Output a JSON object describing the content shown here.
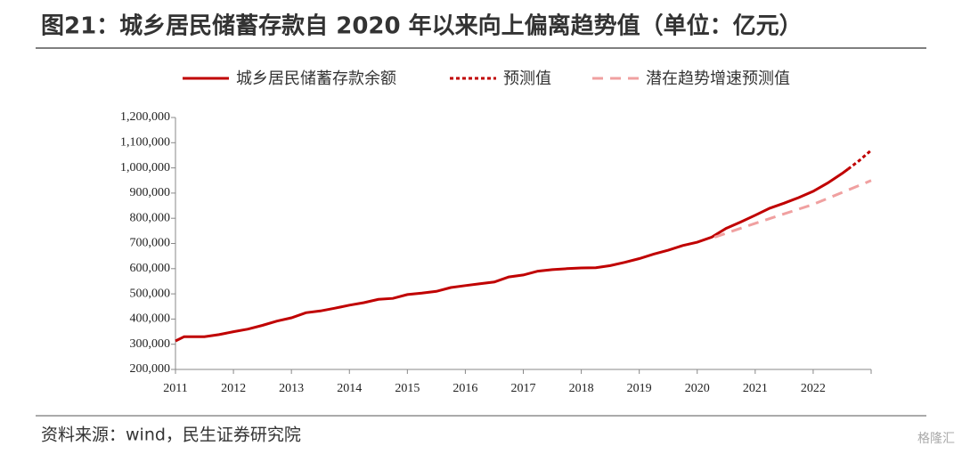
{
  "chart_data": {
    "type": "line",
    "title": "图21：城乡居民储蓄存款自 2020 年以来向上偏离趋势值（单位：亿元）",
    "source": "资料来源：wind，民生证券研究院",
    "watermark": "格隆汇",
    "xlim": [
      2011,
      2023
    ],
    "xticks": [
      2011,
      2012,
      2013,
      2014,
      2015,
      2016,
      2017,
      2018,
      2019,
      2020,
      2021,
      2022
    ],
    "ylim": [
      200000,
      1200000
    ],
    "yticks": [
      {
        "value": 200000,
        "label": "200,000"
      },
      {
        "value": 300000,
        "label": "300,000"
      },
      {
        "value": 400000,
        "label": "400,000"
      },
      {
        "value": 500000,
        "label": "500,000"
      },
      {
        "value": 600000,
        "label": "600,000"
      },
      {
        "value": 700000,
        "label": "700,000"
      },
      {
        "value": 800000,
        "label": "800,000"
      },
      {
        "value": 900000,
        "label": "900,000"
      },
      {
        "value": 1000000,
        "label": "1,000,000"
      },
      {
        "value": 1100000,
        "label": "1,100,000"
      },
      {
        "value": 1200000,
        "label": "1,200,000"
      }
    ],
    "grid": false,
    "legend": "top",
    "series": [
      {
        "name": "城乡居民储蓄存款余额",
        "color": "#c00000",
        "style": "solid",
        "x": [
          2011.0,
          2011.15,
          2011.5,
          2011.75,
          2012.0,
          2012.25,
          2012.5,
          2012.75,
          2013.0,
          2013.25,
          2013.5,
          2013.75,
          2014.0,
          2014.25,
          2014.5,
          2014.75,
          2015.0,
          2015.25,
          2015.5,
          2015.75,
          2016.0,
          2016.25,
          2016.5,
          2016.75,
          2017.0,
          2017.25,
          2017.5,
          2017.75,
          2018.0,
          2018.25,
          2018.5,
          2018.75,
          2019.0,
          2019.25,
          2019.5,
          2019.75,
          2020.0,
          2020.25,
          2020.5,
          2020.75,
          2021.0,
          2021.25,
          2021.5,
          2021.75,
          2022.0,
          2022.25,
          2022.5,
          2022.6
        ],
        "values": [
          313000,
          330000,
          330000,
          338000,
          350000,
          360000,
          375000,
          392000,
          405000,
          425000,
          432000,
          443000,
          455000,
          465000,
          478000,
          482000,
          497000,
          503000,
          510000,
          525000,
          533000,
          540000,
          547000,
          567000,
          575000,
          590000,
          596000,
          600000,
          603000,
          604000,
          612000,
          625000,
          640000,
          658000,
          673000,
          692000,
          705000,
          725000,
          760000,
          785000,
          812000,
          840000,
          860000,
          882000,
          907000,
          940000,
          978000,
          995000
        ]
      },
      {
        "name": "预测值",
        "color": "#c00000",
        "style": "dotted",
        "x": [
          2022.6,
          2022.8,
          2023.0
        ],
        "values": [
          995000,
          1030000,
          1070000
        ]
      },
      {
        "name": "潜在趋势增速预测值",
        "color": "#f0a0a0",
        "style": "dashed",
        "x": [
          2020.3,
          2021.0,
          2022.0,
          2023.0
        ],
        "values": [
          725000,
          780000,
          855000,
          950000
        ]
      }
    ]
  }
}
